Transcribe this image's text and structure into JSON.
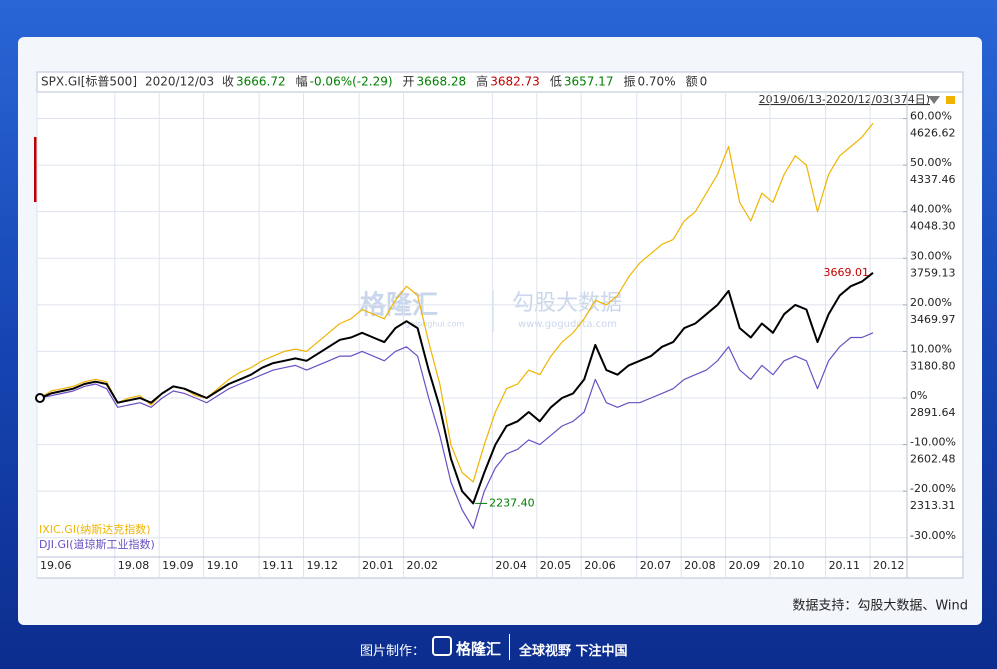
{
  "chart_data": {
    "type": "line",
    "header": {
      "date": "2020/12/03",
      "fields": [
        {
          "label": "收",
          "value": "3666.72",
          "color": "#008000"
        },
        {
          "label": "幅",
          "value": "-0.06%(-2.29)",
          "color": "#008000"
        },
        {
          "label": "开",
          "value": "3668.28",
          "color": "#008000"
        },
        {
          "label": "高",
          "value": "3682.73",
          "color": "#c00000"
        },
        {
          "label": "低",
          "value": "3657.17",
          "color": "#008000"
        },
        {
          "label": "振",
          "value": "0.70%",
          "color": "#333333"
        },
        {
          "label": "额",
          "value": "0",
          "color": "#333333"
        }
      ],
      "range": "2019/06/13-2020/12/03(374日)"
    },
    "categories": [
      "19.06",
      null,
      null,
      null,
      null,
      null,
      null,
      "19.08",
      null,
      null,
      null,
      "19.09",
      null,
      null,
      null,
      "19.10",
      null,
      null,
      null,
      null,
      "19.11",
      null,
      null,
      null,
      "19.12",
      null,
      null,
      null,
      null,
      "20.01",
      null,
      null,
      null,
      "20.02",
      null,
      null,
      null,
      null,
      null,
      null,
      null,
      "20.04",
      null,
      null,
      null,
      "20.05",
      null,
      null,
      null,
      "20.06",
      null,
      null,
      null,
      null,
      "20.07",
      null,
      null,
      null,
      "20.08",
      null,
      null,
      null,
      "20.09",
      null,
      null,
      null,
      "20.10",
      null,
      null,
      null,
      null,
      "20.11",
      null,
      null,
      null,
      "20.12"
    ],
    "ylim": [
      -33.7,
      61.4
    ],
    "yticks": [
      {
        "value": 60,
        "label": "60.00%"
      },
      {
        "value": 50,
        "label": "50.00%"
      },
      {
        "value": 40,
        "label": "40.00%"
      },
      {
        "value": 30,
        "label": "30.00%"
      },
      {
        "value": 20,
        "label": "20.00%"
      },
      {
        "value": 10,
        "label": "10.00%"
      },
      {
        "value": 0,
        "label": "0%"
      },
      {
        "value": -10,
        "label": "-10.00%"
      },
      {
        "value": -20,
        "label": "-20.00%"
      },
      {
        "value": -30,
        "label": "-30.00%"
      }
    ],
    "y2lim": [
      1917.16,
      4667.11
    ],
    "y2ticks": [
      4626.62,
      4337.46,
      {
        "value": 4048.3,
        "label": "4048.30"
      },
      3759.13,
      3469.97,
      {
        "value": 3180.8,
        "label": "3180.80"
      },
      2891.64,
      2602.48,
      2313.31
    ],
    "grid": true,
    "series": [
      {
        "name": "SPX.GI[标普500]",
        "color": "#000000",
        "axis": "y2",
        "values": [
          2891.64,
          2920.56,
          2935.01,
          2949.47,
          2978.39,
          2992.85,
          2978.39,
          2862.72,
          2877.18,
          2891.64,
          2862.72,
          2920.56,
          2963.93,
          2949.47,
          2920.56,
          2891.64,
          2935.01,
          2978.39,
          3007.31,
          3036.22,
          3079.6,
          3108.51,
          3122.97,
          3137.43,
          3122.97,
          3166.35,
          3209.72,
          3253.1,
          3267.55,
          3296.47,
          3267.55,
          3238.64,
          3325.39,
          3368.76,
          3325.39,
          3065.14,
          2833.81,
          2515.73,
          2313.31,
          2237.4,
          2428.98,
          2602.48,
          2718.14,
          2747.06,
          2804.89,
          2747.06,
          2833.81,
          2891.64,
          2920.56,
          3007.31,
          3221.29,
          3065.14,
          3036.22,
          3094.05,
          3122.97,
          3151.89,
          3209.72,
          3238.64,
          3325.39,
          3354.3,
          3412.14,
          3469.97,
          3556.72,
          3325.39,
          3267.55,
          3354.3,
          3296.47,
          3412.14,
          3469.97,
          3441.05,
          3238.64,
          3412.14,
          3527.8,
          3585.63,
          3614.55,
          3669.01
        ]
      },
      {
        "name": "IXIC.GI(纳斯达克指数)",
        "color": "#f0b400",
        "values": [
          0,
          1.5,
          2,
          2.5,
          3.5,
          4,
          3.5,
          -1,
          0,
          0.5,
          -1.5,
          1,
          2.5,
          2,
          0.5,
          0,
          2,
          4,
          5.5,
          6.5,
          8,
          9,
          10,
          10.5,
          10,
          12,
          14,
          16,
          17,
          19,
          18,
          17,
          21,
          24,
          22,
          12,
          3,
          -10,
          -16,
          -18,
          -10,
          -3,
          2,
          3,
          6,
          5,
          9,
          12,
          14,
          17,
          21,
          20,
          22,
          26,
          29,
          31,
          33,
          34,
          38,
          40,
          44,
          48,
          54,
          42,
          38,
          44,
          42,
          48,
          52,
          50,
          40,
          48,
          52,
          54,
          56,
          59
        ]
      },
      {
        "name": "DJI.GI(道琼斯工业指数)",
        "color": "#6a4fc4",
        "values": [
          0,
          0.5,
          1,
          1.5,
          2.5,
          3,
          2,
          -2,
          -1.5,
          -1,
          -2,
          0,
          1.5,
          1,
          0,
          -1,
          0.5,
          2,
          3,
          4,
          5,
          6,
          6.5,
          7,
          6,
          7,
          8,
          9,
          9,
          10,
          9,
          8,
          10,
          11,
          9,
          0,
          -8,
          -18,
          -24,
          -28,
          -20,
          -15,
          -12,
          -11,
          -9,
          -10,
          -8,
          -6,
          -5,
          -3,
          4,
          -1,
          -2,
          -1,
          -1,
          0,
          1,
          2,
          4,
          5,
          6,
          8,
          11,
          6,
          4,
          7,
          5,
          8,
          9,
          8,
          2,
          8,
          11,
          13,
          13,
          14
        ]
      }
    ],
    "annotations": [
      {
        "label": "3669.01",
        "color": "#c00000"
      },
      {
        "label": "2237.40",
        "color": "#008000"
      }
    ]
  },
  "watermark": {
    "brand": "格隆汇",
    "brand_url": "gelonghui.com",
    "data": "勾股大数据",
    "data_url": "www.gogudata.com"
  },
  "source": "数据支持：勾股大数据、Wind",
  "footer": {
    "made_by": "图片制作：",
    "brand": "格隆汇",
    "slogan": "全球视野 下注中国"
  }
}
